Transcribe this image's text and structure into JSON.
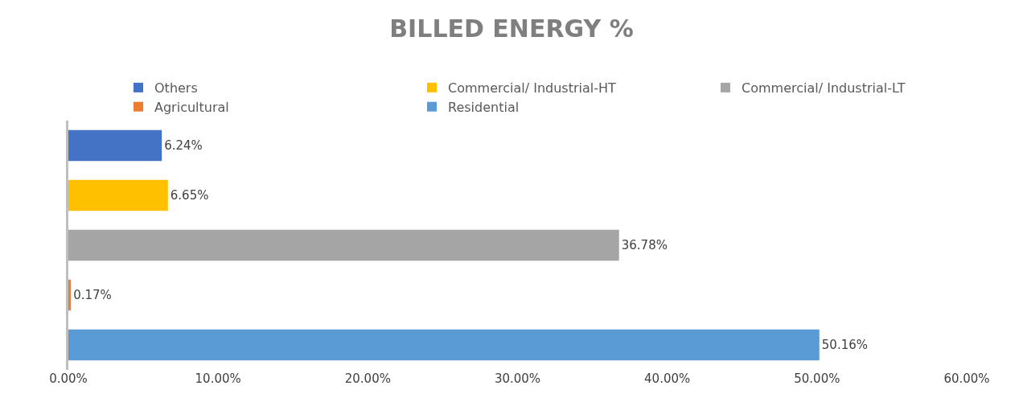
{
  "chart_data": {
    "type": "bar",
    "orientation": "horizontal",
    "title": "BILLED ENERGY %",
    "categories": [
      null,
      null,
      null,
      null,
      null
    ],
    "series": [
      {
        "name": "Others",
        "color": "#4472c4",
        "values": [
          6.24,
          null,
          null,
          null,
          null
        ],
        "value_labels": [
          "6.24%",
          null,
          null,
          null,
          null
        ]
      },
      {
        "name": "Commercial/ Industrial-HT",
        "color": "#ffc000",
        "values": [
          null,
          6.65,
          null,
          null,
          null
        ],
        "value_labels": [
          null,
          "6.65%",
          null,
          null,
          null
        ]
      },
      {
        "name": "Commercial/ Industrial-LT",
        "color": "#a5a5a5",
        "values": [
          null,
          null,
          36.78,
          null,
          null
        ],
        "value_labels": [
          null,
          null,
          "36.78%",
          null,
          null
        ]
      },
      {
        "name": "Agricultural",
        "color": "#ed7d31",
        "values": [
          null,
          null,
          null,
          0.17,
          null
        ],
        "value_labels": [
          null,
          null,
          null,
          "0.17%",
          null
        ]
      },
      {
        "name": "Residential",
        "color": "#5b9bd5",
        "values": [
          null,
          null,
          null,
          null,
          50.16
        ],
        "value_labels": [
          null,
          null,
          null,
          null,
          "50.16%"
        ]
      }
    ],
    "xlim": [
      0,
      60
    ],
    "xticks": [
      {
        "value": 0,
        "label": "0.00%"
      },
      {
        "value": 10,
        "label": "10.00%"
      },
      {
        "value": 20,
        "label": "20.00%"
      },
      {
        "value": 30,
        "label": "30.00%"
      },
      {
        "value": 40,
        "label": "40.00%"
      },
      {
        "value": 50,
        "label": "50.00%"
      },
      {
        "value": 60,
        "label": "60.00%"
      }
    ],
    "legend": "top"
  }
}
